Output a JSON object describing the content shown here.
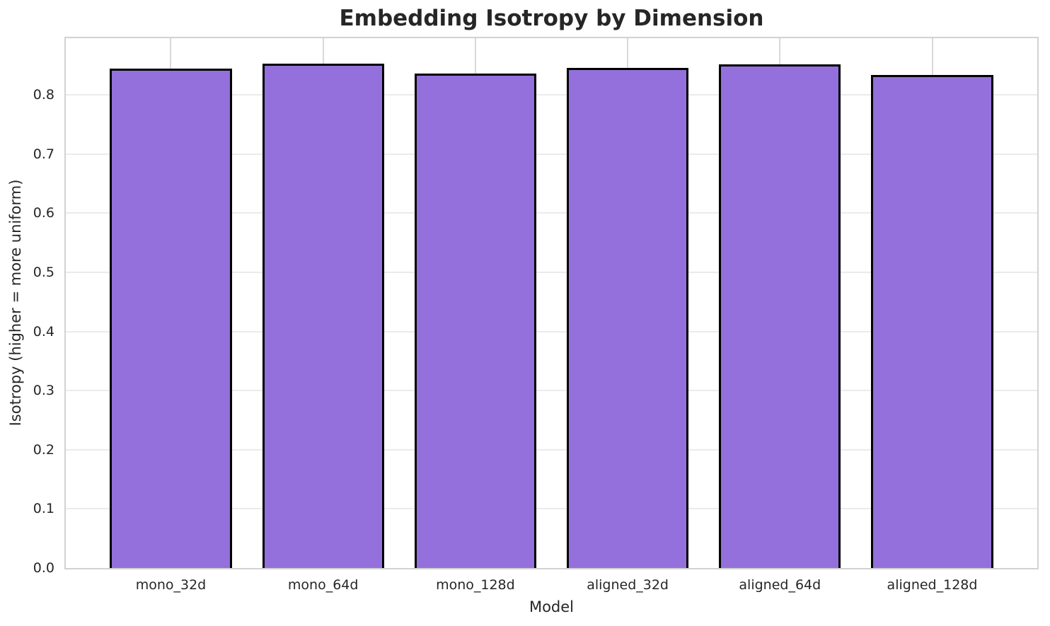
{
  "figure": {
    "title": "Embedding Isotropy by Dimension"
  },
  "chart_data": {
    "type": "bar",
    "title": "Embedding Isotropy by Dimension",
    "xlabel": "Model",
    "ylabel": "Isotropy (higher = more uniform)",
    "categories": [
      "mono_32d",
      "mono_64d",
      "mono_128d",
      "aligned_32d",
      "aligned_64d",
      "aligned_128d"
    ],
    "values": [
      0.845,
      0.853,
      0.836,
      0.846,
      0.852,
      0.834
    ],
    "ylim": [
      0,
      0.896
    ],
    "xlim": [
      -0.69,
      5.69
    ],
    "bar_half_width": 0.4,
    "yticks": [
      0,
      0.1,
      0.2,
      0.3,
      0.4,
      0.5,
      0.6,
      0.7,
      0.8
    ],
    "ytick_labels": [
      "0.0",
      "0.1",
      "0.2",
      "0.3",
      "0.4",
      "0.5",
      "0.6",
      "0.7",
      "0.8"
    ],
    "grid": true,
    "legend_visible": false,
    "colors": {
      "bar_fill": "#9370DB",
      "bar_edge": "#000000",
      "grid_horizontal": "#ebebeb",
      "grid_vertical": "#d9d9d9",
      "spine": "#d2d2d2",
      "text": "#262626"
    }
  }
}
